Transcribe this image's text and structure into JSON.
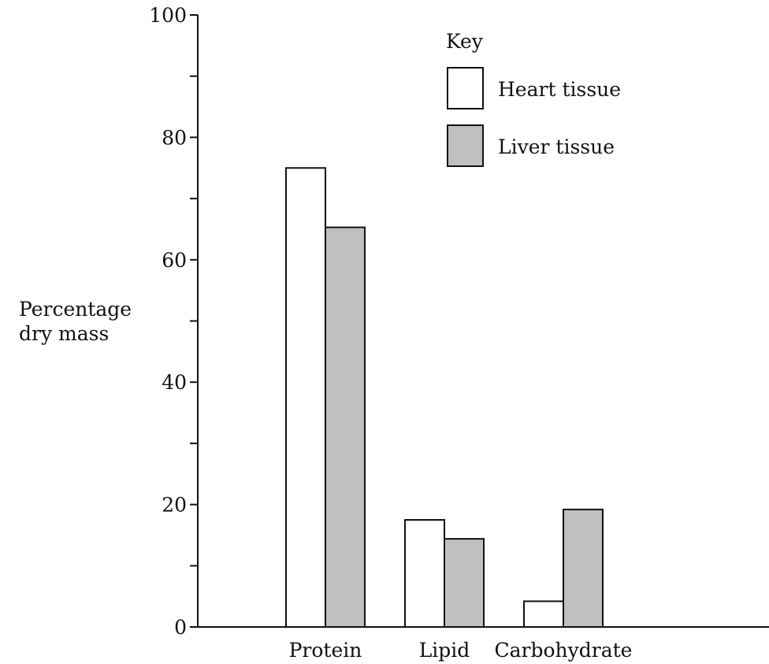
{
  "chart_data": {
    "type": "bar",
    "title": "",
    "xlabel": "",
    "ylabel_lines": [
      "Percentage",
      "dry mass"
    ],
    "ylim": [
      0,
      100
    ],
    "y_major_ticks": [
      0,
      20,
      40,
      60,
      80,
      100
    ],
    "y_minor_ticks": [
      10,
      30,
      50,
      70,
      90
    ],
    "categories": [
      "Protein",
      "Lipid",
      "Carbohydrate"
    ],
    "series": [
      {
        "name": "Heart tissue",
        "values": [
          75,
          17.5,
          4.2
        ],
        "color": "#ffffff"
      },
      {
        "name": "Liver tissue",
        "values": [
          65.3,
          14.4,
          19.2
        ],
        "color": "#c0c0c0"
      }
    ],
    "legend": {
      "title": "Key",
      "position": "top-right"
    },
    "grid": false
  }
}
